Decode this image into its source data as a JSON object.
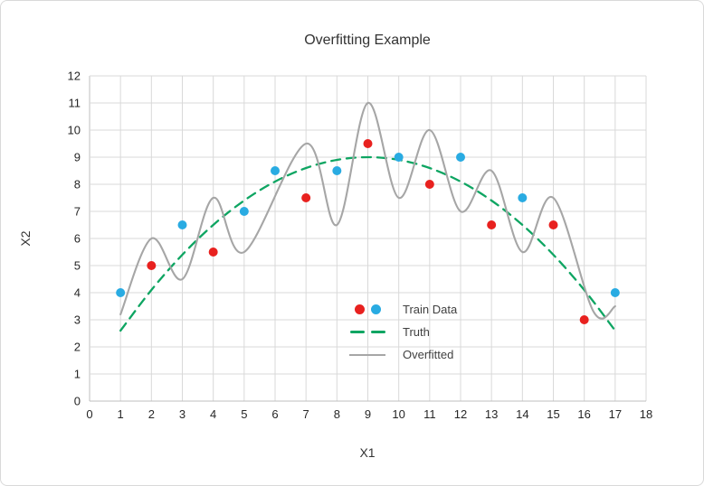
{
  "chart_data": {
    "type": "scatter",
    "title": "Overfitting Example",
    "xlabel": "X1",
    "ylabel": "X2",
    "xlim": [
      0,
      18
    ],
    "ylim": [
      0,
      12
    ],
    "x_ticks": [
      "0",
      "1",
      "2",
      "3",
      "4",
      "5",
      "6",
      "7",
      "8",
      "9",
      "10",
      "11",
      "12",
      "13",
      "14",
      "15",
      "16",
      "17",
      "18"
    ],
    "y_ticks": [
      "0",
      "1",
      "2",
      "3",
      "4",
      "5",
      "6",
      "7",
      "8",
      "9",
      "10",
      "11",
      "12"
    ],
    "grid": true,
    "legend_position": "inside-right-center",
    "series": [
      {
        "name": "Train Data",
        "type": "scatter",
        "groups": [
          {
            "color": "#e8211f",
            "points": [
              [
                2,
                5
              ],
              [
                4,
                5.5
              ],
              [
                7,
                7.5
              ],
              [
                9,
                9.5
              ],
              [
                11,
                8
              ],
              [
                13,
                6.5
              ],
              [
                15,
                6.5
              ],
              [
                16,
                3
              ]
            ]
          },
          {
            "color": "#29abe2",
            "points": [
              [
                1,
                4
              ],
              [
                3,
                6.5
              ],
              [
                5,
                7
              ],
              [
                6,
                8.5
              ],
              [
                8,
                8.5
              ],
              [
                10,
                9
              ],
              [
                12,
                9
              ],
              [
                14,
                7.5
              ],
              [
                17,
                4
              ]
            ]
          }
        ]
      },
      {
        "name": "Truth",
        "type": "line",
        "dash": true,
        "color": "#0ea562",
        "points": [
          [
            1,
            2.6
          ],
          [
            2,
            4.1
          ],
          [
            3,
            5.4
          ],
          [
            4,
            6.5
          ],
          [
            5,
            7.4
          ],
          [
            6,
            8.1
          ],
          [
            7,
            8.6
          ],
          [
            8,
            8.9
          ],
          [
            9,
            9
          ],
          [
            10,
            8.9
          ],
          [
            11,
            8.6
          ],
          [
            12,
            8.1
          ],
          [
            13,
            7.4
          ],
          [
            14,
            6.5
          ],
          [
            15,
            5.4
          ],
          [
            16,
            4.1
          ],
          [
            17,
            2.6
          ]
        ]
      },
      {
        "name": "Overfitted",
        "type": "line",
        "dash": false,
        "color": "#a6a6a6",
        "points": [
          [
            1,
            3.2
          ],
          [
            2,
            6
          ],
          [
            3,
            4.5
          ],
          [
            4,
            7.5
          ],
          [
            5,
            5.5
          ],
          [
            7,
            9.5
          ],
          [
            8,
            6.5
          ],
          [
            9,
            11
          ],
          [
            10,
            7.5
          ],
          [
            11,
            10
          ],
          [
            12,
            7
          ],
          [
            13,
            8.5
          ],
          [
            14,
            5.5
          ],
          [
            15,
            7.5
          ],
          [
            16.3,
            3.3
          ],
          [
            17,
            3.5
          ]
        ]
      }
    ]
  },
  "legend": {
    "items": [
      {
        "label": "Train Data"
      },
      {
        "label": "Truth"
      },
      {
        "label": "Overfitted"
      }
    ]
  },
  "colors": {
    "grid": "#d9d9d9",
    "axis": "#bfbfbf",
    "tick_text": "#262626",
    "title_text": "#333333",
    "legend_text": "#404040",
    "background": "#ffffff",
    "border": "#d9d9d9"
  }
}
